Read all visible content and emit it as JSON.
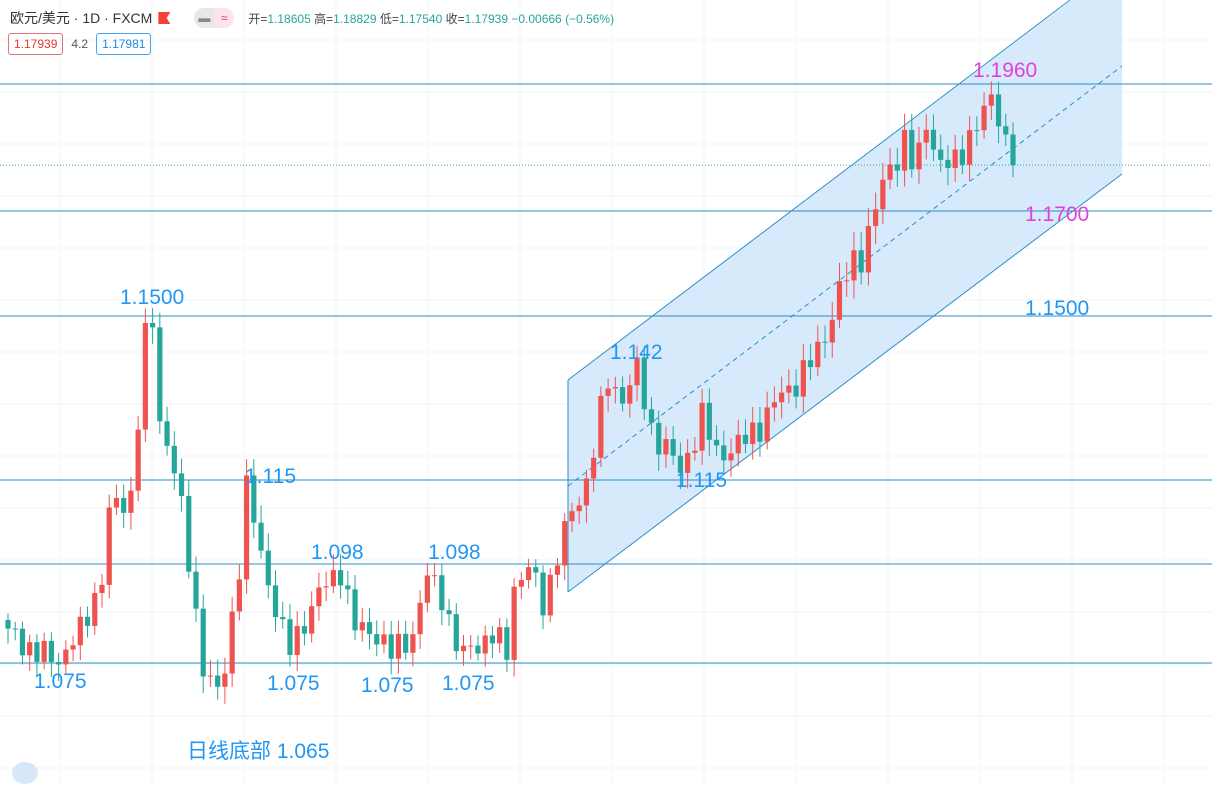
{
  "header": {
    "symbol": "欧元/美元 · 1D · FXCM",
    "open_label": "开=",
    "open": "1.18605",
    "high_label": "高=",
    "high": "1.18829",
    "low_label": "低=",
    "low": "1.17540",
    "close_label": "收=",
    "close": "1.17939",
    "change": "−0.00666 (−0.56%)",
    "bid": "1.17939",
    "spread": "4.2",
    "ask": "1.17981"
  },
  "colors": {
    "up": "#ef5350",
    "down": "#26a69a",
    "line": "#2a8fc9",
    "label": "#2196f3",
    "highlight": "#e040e0",
    "channel_fill": "#cfe6fb"
  },
  "chart_data": {
    "type": "candlestick",
    "bar_count": 140,
    "close_waypoints": [
      [
        0,
        1.083
      ],
      [
        4,
        1.077
      ],
      [
        7,
        1.076
      ],
      [
        10,
        1.082
      ],
      [
        13,
        1.095
      ],
      [
        14,
        1.108
      ],
      [
        17,
        1.112
      ],
      [
        19,
        1.145
      ],
      [
        20,
        1.148
      ],
      [
        21,
        1.128
      ],
      [
        23,
        1.118
      ],
      [
        25,
        1.098
      ],
      [
        27,
        1.075
      ],
      [
        29,
        1.068
      ],
      [
        30,
        1.074
      ],
      [
        32,
        1.098
      ],
      [
        33,
        1.113
      ],
      [
        35,
        1.1
      ],
      [
        38,
        1.082
      ],
      [
        39,
        1.078
      ],
      [
        41,
        1.085
      ],
      [
        43,
        1.091
      ],
      [
        46,
        1.097
      ],
      [
        48,
        1.083
      ],
      [
        51,
        1.082
      ],
      [
        53,
        1.077
      ],
      [
        56,
        1.082
      ],
      [
        58,
        1.095
      ],
      [
        60,
        1.091
      ],
      [
        62,
        1.079
      ],
      [
        64,
        1.079
      ],
      [
        67,
        1.081
      ],
      [
        69,
        1.078
      ],
      [
        70,
        1.093
      ],
      [
        72,
        1.097
      ],
      [
        74,
        1.089
      ],
      [
        76,
        1.1
      ],
      [
        78,
        1.108
      ],
      [
        80,
        1.115
      ],
      [
        83,
        1.136
      ],
      [
        85,
        1.133
      ],
      [
        87,
        1.138
      ],
      [
        89,
        1.126
      ],
      [
        93,
        1.117
      ],
      [
        96,
        1.128
      ],
      [
        98,
        1.121
      ],
      [
        101,
        1.122
      ],
      [
        104,
        1.127
      ],
      [
        107,
        1.133
      ],
      [
        110,
        1.138
      ],
      [
        112,
        1.142
      ],
      [
        115,
        1.155
      ],
      [
        118,
        1.162
      ],
      [
        121,
        1.175
      ],
      [
        124,
        1.185
      ],
      [
        125,
        1.18
      ],
      [
        127,
        1.188
      ],
      [
        129,
        1.18
      ],
      [
        131,
        1.179
      ],
      [
        133,
        1.186
      ],
      [
        136,
        1.192
      ],
      [
        137,
        1.19
      ],
      [
        139,
        1.1794
      ]
    ],
    "levels": [
      1.196,
      1.17,
      1.15,
      1.115,
      1.098,
      1.075
    ],
    "current_price": 1.17939,
    "annotations": {
      "l1150a": "1.1500",
      "l1115a": "1.115",
      "l1098a": "1.098",
      "l1098b": "1.098",
      "l1075a": "1.075",
      "l1075b": "1.075",
      "l1075c": "1.075",
      "l1075d": "1.075",
      "bottom": "日线底部 1.065",
      "l1142": "1.142",
      "l1115b": "1.115",
      "l1960": "1.1960",
      "l1700": "1.1700",
      "l1500b": "1.1500"
    }
  }
}
